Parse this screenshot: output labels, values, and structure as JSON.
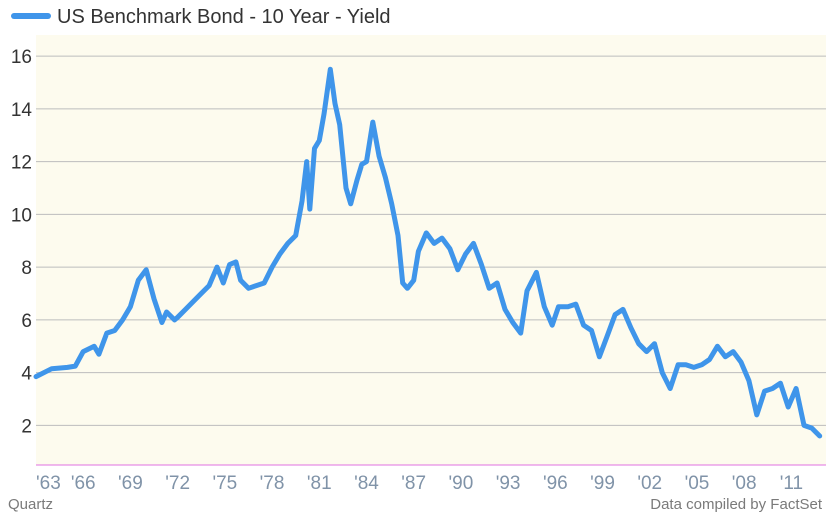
{
  "colors": {
    "series": "#3f95ea",
    "plot_background": "#fdfbee",
    "grid": "#bdbdbd",
    "baseline": "#e070e0"
  },
  "footer": {
    "left": "Quartz",
    "right": "Data compiled by FactSet"
  },
  "chart_data": {
    "type": "line",
    "title": "",
    "xlabel": "",
    "ylabel": "",
    "legend": "top-left",
    "grid": true,
    "xlim": [
      1963,
      2013.2
    ],
    "ylim": [
      0.5,
      16.8
    ],
    "yticks": [
      2,
      4,
      6,
      8,
      10,
      12,
      14,
      16
    ],
    "xticks": [
      1963,
      1966,
      1969,
      1972,
      1975,
      1978,
      1981,
      1984,
      1987,
      1990,
      1993,
      1996,
      1999,
      2002,
      2005,
      2008,
      2011
    ],
    "xtick_labels": [
      "'63",
      "'66",
      "'69",
      "'72",
      "'75",
      "'78",
      "'81",
      "'84",
      "'87",
      "'90",
      "'93",
      "'96",
      "'99",
      "'02",
      "'05",
      "'08",
      "'11"
    ],
    "series": [
      {
        "name": "US Benchmark Bond - 10 Year - Yield",
        "x": [
          1963.0,
          1964.0,
          1965.0,
          1965.5,
          1966.0,
          1966.7,
          1967.0,
          1967.5,
          1968.0,
          1968.5,
          1969.0,
          1969.5,
          1970.0,
          1970.5,
          1971.0,
          1971.3,
          1971.8,
          1972.0,
          1972.5,
          1973.0,
          1973.5,
          1974.0,
          1974.5,
          1974.9,
          1975.3,
          1975.7,
          1976.0,
          1976.5,
          1977.0,
          1977.5,
          1978.0,
          1978.5,
          1979.0,
          1979.5,
          1979.9,
          1980.2,
          1980.4,
          1980.7,
          1981.0,
          1981.3,
          1981.7,
          1982.0,
          1982.3,
          1982.7,
          1983.0,
          1983.4,
          1983.7,
          1984.0,
          1984.4,
          1984.8,
          1985.2,
          1985.6,
          1986.0,
          1986.3,
          1986.6,
          1987.0,
          1987.3,
          1987.8,
          1988.3,
          1988.8,
          1989.3,
          1989.8,
          1990.3,
          1990.8,
          1991.3,
          1991.8,
          1992.3,
          1992.8,
          1993.3,
          1993.8,
          1994.2,
          1994.8,
          1995.3,
          1995.8,
          1996.2,
          1996.8,
          1997.3,
          1997.8,
          1998.3,
          1998.8,
          1999.3,
          1999.8,
          2000.3,
          2000.8,
          2001.3,
          2001.8,
          2002.3,
          2002.8,
          2003.3,
          2003.8,
          2004.3,
          2004.8,
          2005.3,
          2005.8,
          2006.3,
          2006.8,
          2007.3,
          2007.8,
          2008.3,
          2008.8,
          2009.3,
          2009.8,
          2010.3,
          2010.8,
          2011.3,
          2011.8,
          2012.3,
          2012.8
        ],
        "y": [
          3.85,
          4.15,
          4.2,
          4.25,
          4.8,
          5.0,
          4.7,
          5.5,
          5.6,
          6.0,
          6.5,
          7.5,
          7.9,
          6.8,
          5.9,
          6.3,
          6.0,
          6.1,
          6.4,
          6.7,
          7.0,
          7.3,
          8.0,
          7.4,
          8.1,
          8.2,
          7.5,
          7.2,
          7.3,
          7.4,
          8.0,
          8.5,
          8.9,
          9.2,
          10.5,
          12.0,
          10.2,
          12.5,
          12.8,
          13.8,
          15.5,
          14.2,
          13.4,
          11.0,
          10.4,
          11.3,
          11.9,
          12.0,
          13.5,
          12.2,
          11.4,
          10.4,
          9.2,
          7.4,
          7.2,
          7.5,
          8.6,
          9.3,
          8.9,
          9.1,
          8.7,
          7.9,
          8.5,
          8.9,
          8.1,
          7.2,
          7.4,
          6.4,
          5.9,
          5.5,
          7.1,
          7.8,
          6.5,
          5.8,
          6.5,
          6.5,
          6.6,
          5.8,
          5.6,
          4.6,
          5.4,
          6.2,
          6.4,
          5.7,
          5.1,
          4.8,
          5.1,
          4.0,
          3.4,
          4.3,
          4.3,
          4.2,
          4.3,
          4.5,
          5.0,
          4.6,
          4.8,
          4.4,
          3.7,
          2.4,
          3.3,
          3.4,
          3.6,
          2.7,
          3.4,
          2.0,
          1.9,
          1.6
        ]
      }
    ]
  }
}
